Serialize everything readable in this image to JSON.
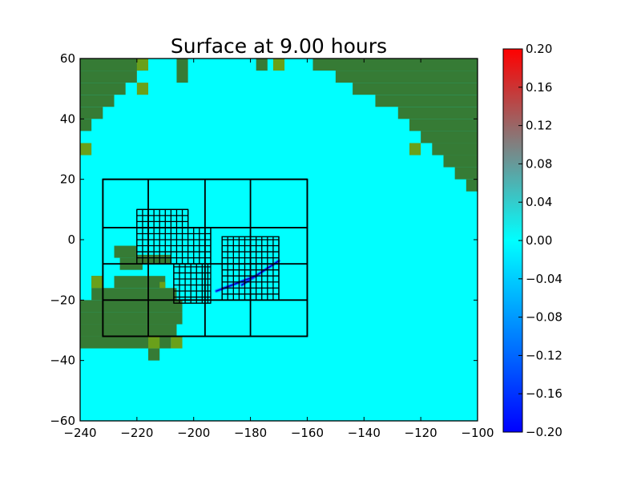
{
  "chart_data": {
    "type": "heatmap",
    "title": "Surface at 9.00 hours",
    "xlabel": "",
    "ylabel": "",
    "xlim": [
      -240,
      -100
    ],
    "ylim": [
      -60,
      60
    ],
    "x_ticks": [
      "−240",
      "−220",
      "−200",
      "−180",
      "−160",
      "−140",
      "−120",
      "−100"
    ],
    "y_ticks": [
      "−60",
      "−40",
      "−20",
      "0",
      "20",
      "40",
      "60"
    ],
    "x_tick_values": [
      -240,
      -220,
      -200,
      -180,
      -160,
      -140,
      -120,
      -100
    ],
    "y_tick_values": [
      -60,
      -40,
      -20,
      0,
      20,
      40,
      60
    ],
    "grid": false,
    "background_color": "#00ffff",
    "land_color": "#367b35",
    "land_highlight_color": "#6aa01a",
    "colorbar": {
      "range": [
        -0.2,
        0.2
      ],
      "ticks": [
        "0.20",
        "0.16",
        "0.12",
        "0.08",
        "0.04",
        "0.00",
        "−0.04",
        "−0.08",
        "−0.12",
        "−0.16",
        "−0.20"
      ],
      "tick_values": [
        0.2,
        0.16,
        0.12,
        0.08,
        0.04,
        0.0,
        -0.04,
        -0.08,
        -0.12,
        -0.16,
        -0.2
      ],
      "colors": [
        "#0000ff",
        "#0080ff",
        "#00ffff",
        "#808080",
        "#ff0000"
      ]
    },
    "amr_grids": [
      {
        "level": 1,
        "x0": -232,
        "x1": -160,
        "y0": -32,
        "y1": 20,
        "xlines": [
          -232,
          -216,
          -196,
          -180,
          -160
        ],
        "ylines": [
          -32,
          -20,
          -8,
          4,
          20
        ]
      },
      {
        "level": 2,
        "x0": -220,
        "x1": -202,
        "y0": 4,
        "y1": 10,
        "dx": 2,
        "dy": 2
      },
      {
        "level": 2,
        "x0": -220,
        "x1": -194,
        "y0": -8,
        "y1": 4,
        "dx": 2,
        "dy": 2
      },
      {
        "level": 2,
        "x0": -190,
        "x1": -170,
        "y0": -20,
        "y1": 1,
        "dx": 2,
        "dy": 2
      },
      {
        "level": 2,
        "x0": -207,
        "x1": -194,
        "y0": -21,
        "y1": -8,
        "dx": 2,
        "dy": 2
      }
    ],
    "wave_front": [
      {
        "x": [
          -183,
          -170
        ],
        "y": [
          -15,
          -7
        ]
      },
      {
        "x": [
          -192,
          -178
        ],
        "y": [
          -17,
          -12
        ]
      }
    ],
    "land_blocks": [
      {
        "x0": -240,
        "x1": -218,
        "y0": 60,
        "y1": 56
      },
      {
        "x0": -240,
        "x1": -220,
        "y0": 56,
        "y1": 52
      },
      {
        "x0": -240,
        "x1": -224,
        "y0": 52,
        "y1": 48
      },
      {
        "x0": -240,
        "x1": -228,
        "y0": 48,
        "y1": 44
      },
      {
        "x0": -240,
        "x1": -232,
        "y0": 44,
        "y1": 40
      },
      {
        "x0": -240,
        "x1": -236,
        "y0": 40,
        "y1": 36
      },
      {
        "x0": -206,
        "x1": -202,
        "y0": 60,
        "y1": 52
      },
      {
        "x0": -178,
        "x1": -174,
        "y0": 60,
        "y1": 56
      },
      {
        "x0": -158,
        "x1": -100,
        "y0": 60,
        "y1": 56
      },
      {
        "x0": -150,
        "x1": -100,
        "y0": 56,
        "y1": 52
      },
      {
        "x0": -144,
        "x1": -100,
        "y0": 52,
        "y1": 48
      },
      {
        "x0": -136,
        "x1": -100,
        "y0": 48,
        "y1": 44
      },
      {
        "x0": -128,
        "x1": -100,
        "y0": 44,
        "y1": 40
      },
      {
        "x0": -124,
        "x1": -100,
        "y0": 40,
        "y1": 36
      },
      {
        "x0": -120,
        "x1": -100,
        "y0": 36,
        "y1": 32
      },
      {
        "x0": -116,
        "x1": -100,
        "y0": 32,
        "y1": 28
      },
      {
        "x0": -112,
        "x1": -100,
        "y0": 28,
        "y1": 24
      },
      {
        "x0": -108,
        "x1": -100,
        "y0": 24,
        "y1": 20
      },
      {
        "x0": -104,
        "x1": -100,
        "y0": 20,
        "y1": 16
      },
      {
        "x0": -228,
        "x1": -210,
        "y0": -12,
        "y1": -16
      },
      {
        "x0": -236,
        "x1": -206,
        "y0": -16,
        "y1": -20
      },
      {
        "x0": -240,
        "x1": -204,
        "y0": -20,
        "y1": -24
      },
      {
        "x0": -240,
        "x1": -204,
        "y0": -24,
        "y1": -28
      },
      {
        "x0": -240,
        "x1": -206,
        "y0": -28,
        "y1": -32
      },
      {
        "x0": -240,
        "x1": -208,
        "y0": -32,
        "y1": -36
      },
      {
        "x0": -216,
        "x1": -212,
        "y0": -36,
        "y1": -40
      },
      {
        "x0": -236,
        "x1": -232,
        "y0": -12,
        "y1": -16
      },
      {
        "x0": -228,
        "x1": -220,
        "y0": -2,
        "y1": -6
      },
      {
        "x0": -226,
        "x1": -218,
        "y0": -6,
        "y1": -10
      },
      {
        "x0": -221,
        "x1": -208,
        "y0": -5,
        "y1": -8
      }
    ],
    "land_highlights": [
      {
        "x0": -220,
        "x1": -216,
        "y0": 60,
        "y1": 56
      },
      {
        "x0": -220,
        "x1": -216,
        "y0": 52,
        "y1": 48
      },
      {
        "x0": -240,
        "x1": -236,
        "y0": 32,
        "y1": 28
      },
      {
        "x0": -208,
        "x1": -204,
        "y0": -32,
        "y1": -36
      },
      {
        "x0": -216,
        "x1": -212,
        "y0": -32,
        "y1": -36
      },
      {
        "x0": -236,
        "x1": -232,
        "y0": -12,
        "y1": -16
      },
      {
        "x0": -172,
        "x1": -168,
        "y0": 60,
        "y1": 56
      },
      {
        "x0": -124,
        "x1": -120,
        "y0": 32,
        "y1": 28
      },
      {
        "x0": -212,
        "x1": -210,
        "y0": -14,
        "y1": -16
      }
    ]
  }
}
